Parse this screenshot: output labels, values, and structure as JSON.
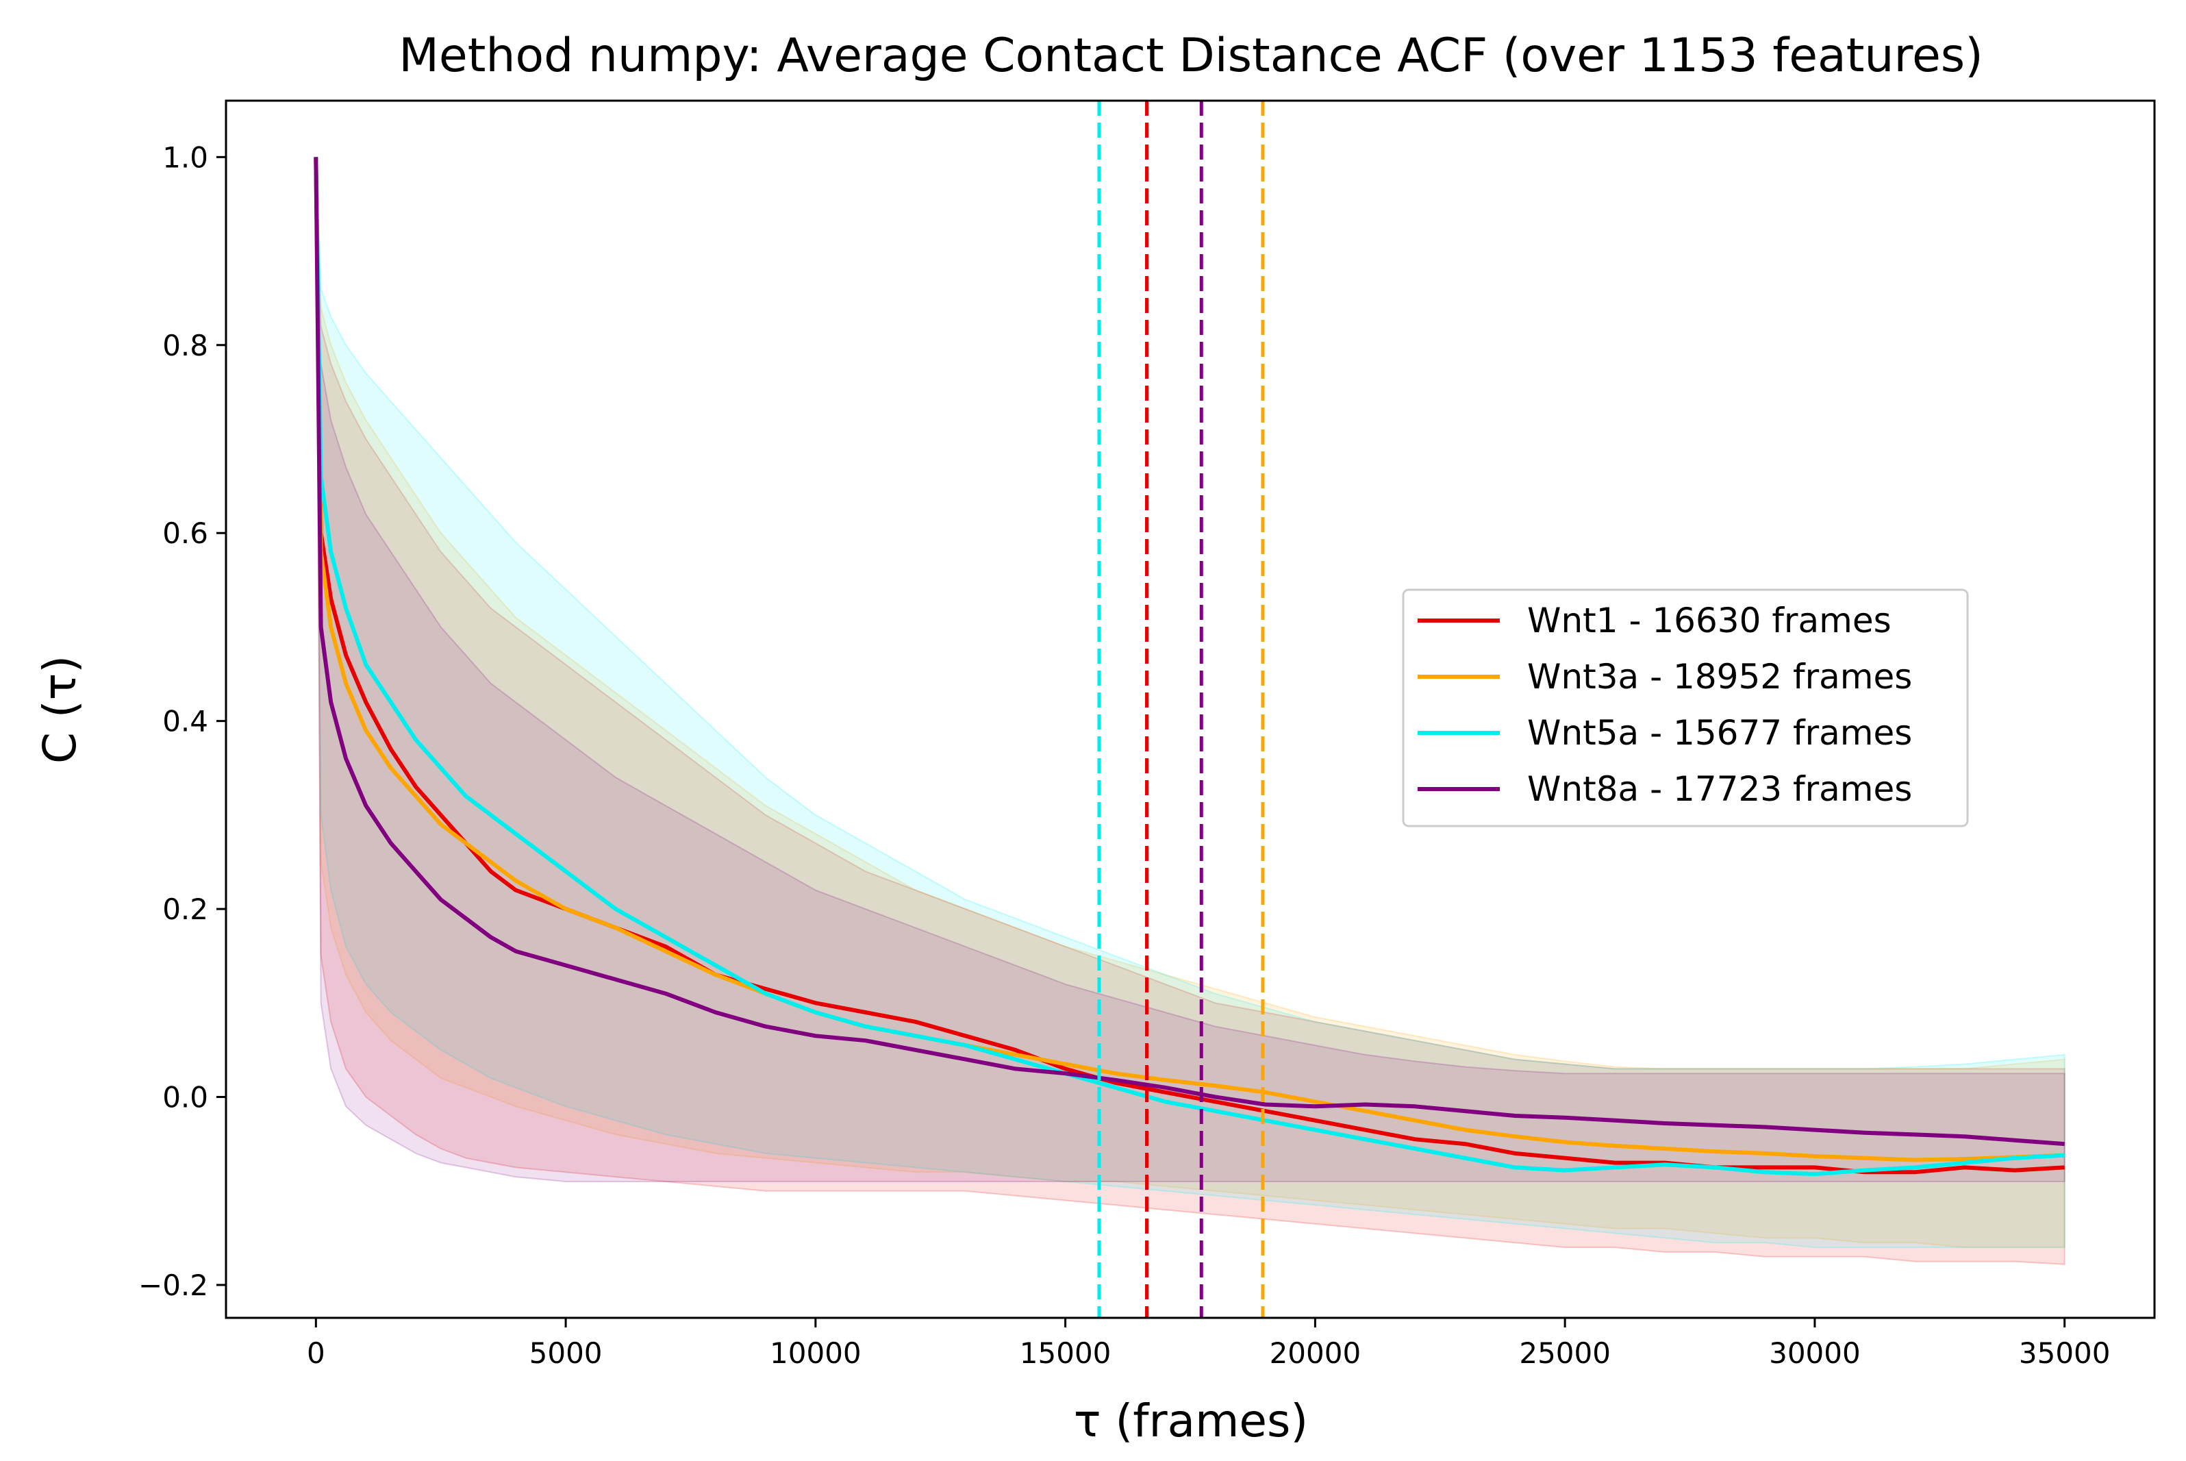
{
  "chart_data": {
    "type": "line",
    "title": "Method numpy: Average Contact Distance ACF (over 1153 features)",
    "xlabel": "τ (frames)",
    "ylabel": "C (τ)",
    "xlim": [
      -1800,
      36800
    ],
    "ylim": [
      -0.235,
      1.06
    ],
    "xticks": [
      0,
      5000,
      10000,
      15000,
      20000,
      25000,
      30000,
      35000
    ],
    "xtick_labels": [
      "0",
      "5000",
      "10000",
      "15000",
      "20000",
      "25000",
      "30000",
      "35000"
    ],
    "yticks": [
      -0.2,
      0.0,
      0.2,
      0.4,
      0.6,
      0.8,
      1.0
    ],
    "ytick_labels": [
      "−0.2",
      "0.0",
      "0.2",
      "0.4",
      "0.6",
      "0.8",
      "1.0"
    ],
    "grid": false,
    "legend_position": "center-right",
    "series": [
      {
        "name": "Wnt1 - 16630 frames",
        "color": "#e60000",
        "decorrelation_time": 16630,
        "x": [
          0,
          100,
          300,
          600,
          1000,
          1500,
          2000,
          2500,
          3000,
          3500,
          4000,
          5000,
          6000,
          7000,
          8000,
          9000,
          10000,
          11000,
          12000,
          13000,
          14000,
          15000,
          16000,
          17000,
          18000,
          19000,
          20000,
          21000,
          22000,
          23000,
          24000,
          25000,
          26000,
          27000,
          28000,
          29000,
          30000,
          31000,
          32000,
          33000,
          34000,
          35000
        ],
        "y": [
          1.0,
          0.6,
          0.53,
          0.47,
          0.42,
          0.37,
          0.33,
          0.3,
          0.27,
          0.24,
          0.22,
          0.2,
          0.18,
          0.16,
          0.13,
          0.115,
          0.1,
          0.09,
          0.08,
          0.065,
          0.05,
          0.03,
          0.015,
          0.005,
          -0.005,
          -0.015,
          -0.025,
          -0.035,
          -0.045,
          -0.05,
          -0.06,
          -0.065,
          -0.07,
          -0.07,
          -0.075,
          -0.075,
          -0.075,
          -0.08,
          -0.08,
          -0.075,
          -0.078,
          -0.075
        ],
        "upper": [
          1.0,
          0.82,
          0.78,
          0.74,
          0.7,
          0.66,
          0.62,
          0.58,
          0.55,
          0.52,
          0.5,
          0.46,
          0.42,
          0.38,
          0.34,
          0.3,
          0.27,
          0.24,
          0.22,
          0.2,
          0.18,
          0.16,
          0.14,
          0.12,
          0.1,
          0.09,
          0.08,
          0.07,
          0.06,
          0.05,
          0.04,
          0.035,
          0.03,
          0.03,
          0.03,
          0.03,
          0.03,
          0.03,
          0.03,
          0.03,
          0.03,
          0.03
        ],
        "lower": [
          1.0,
          0.15,
          0.08,
          0.03,
          0.0,
          -0.02,
          -0.04,
          -0.055,
          -0.065,
          -0.07,
          -0.075,
          -0.08,
          -0.085,
          -0.09,
          -0.095,
          -0.1,
          -0.1,
          -0.1,
          -0.1,
          -0.1,
          -0.105,
          -0.11,
          -0.115,
          -0.12,
          -0.125,
          -0.13,
          -0.135,
          -0.14,
          -0.145,
          -0.15,
          -0.155,
          -0.16,
          -0.16,
          -0.165,
          -0.165,
          -0.17,
          -0.17,
          -0.17,
          -0.175,
          -0.175,
          -0.175,
          -0.178
        ]
      },
      {
        "name": "Wnt3a - 18952 frames",
        "color": "#ffa500",
        "decorrelation_time": 18952,
        "x": [
          0,
          100,
          300,
          600,
          1000,
          1500,
          2000,
          2500,
          3000,
          3500,
          4000,
          5000,
          6000,
          7000,
          8000,
          9000,
          10000,
          11000,
          12000,
          13000,
          14000,
          15000,
          16000,
          17000,
          18000,
          19000,
          20000,
          21000,
          22000,
          23000,
          24000,
          25000,
          26000,
          27000,
          28000,
          29000,
          30000,
          31000,
          32000,
          33000,
          34000,
          35000
        ],
        "y": [
          1.0,
          0.58,
          0.5,
          0.44,
          0.39,
          0.35,
          0.32,
          0.29,
          0.27,
          0.25,
          0.23,
          0.2,
          0.18,
          0.155,
          0.13,
          0.11,
          0.09,
          0.075,
          0.065,
          0.055,
          0.045,
          0.035,
          0.025,
          0.018,
          0.012,
          0.005,
          -0.005,
          -0.015,
          -0.025,
          -0.035,
          -0.042,
          -0.048,
          -0.052,
          -0.055,
          -0.058,
          -0.06,
          -0.063,
          -0.065,
          -0.067,
          -0.066,
          -0.064,
          -0.062
        ],
        "upper": [
          1.0,
          0.84,
          0.8,
          0.76,
          0.72,
          0.68,
          0.64,
          0.6,
          0.57,
          0.54,
          0.51,
          0.47,
          0.43,
          0.39,
          0.35,
          0.31,
          0.28,
          0.25,
          0.22,
          0.2,
          0.18,
          0.16,
          0.145,
          0.13,
          0.115,
          0.1,
          0.085,
          0.075,
          0.065,
          0.055,
          0.045,
          0.038,
          0.032,
          0.03,
          0.03,
          0.03,
          0.03,
          0.03,
          0.03,
          0.03,
          0.035,
          0.04
        ],
        "lower": [
          1.0,
          0.25,
          0.18,
          0.13,
          0.09,
          0.06,
          0.04,
          0.02,
          0.01,
          0.0,
          -0.01,
          -0.025,
          -0.04,
          -0.05,
          -0.06,
          -0.065,
          -0.07,
          -0.075,
          -0.08,
          -0.08,
          -0.085,
          -0.09,
          -0.09,
          -0.095,
          -0.1,
          -0.105,
          -0.11,
          -0.115,
          -0.12,
          -0.125,
          -0.13,
          -0.135,
          -0.14,
          -0.14,
          -0.145,
          -0.15,
          -0.15,
          -0.155,
          -0.155,
          -0.16,
          -0.16,
          -0.16
        ]
      },
      {
        "name": "Wnt5a - 15677 frames",
        "color": "#00eeee",
        "decorrelation_time": 15677,
        "x": [
          0,
          100,
          300,
          600,
          1000,
          1500,
          2000,
          2500,
          3000,
          3500,
          4000,
          5000,
          6000,
          7000,
          8000,
          9000,
          10000,
          11000,
          12000,
          13000,
          14000,
          15000,
          16000,
          17000,
          18000,
          19000,
          20000,
          21000,
          22000,
          23000,
          24000,
          25000,
          26000,
          27000,
          28000,
          29000,
          30000,
          31000,
          32000,
          33000,
          34000,
          35000
        ],
        "y": [
          1.0,
          0.66,
          0.58,
          0.52,
          0.46,
          0.42,
          0.38,
          0.35,
          0.32,
          0.3,
          0.28,
          0.24,
          0.2,
          0.17,
          0.14,
          0.11,
          0.09,
          0.075,
          0.065,
          0.055,
          0.04,
          0.025,
          0.01,
          -0.005,
          -0.015,
          -0.025,
          -0.035,
          -0.045,
          -0.055,
          -0.065,
          -0.075,
          -0.078,
          -0.075,
          -0.072,
          -0.075,
          -0.08,
          -0.082,
          -0.078,
          -0.075,
          -0.07,
          -0.065,
          -0.062
        ],
        "upper": [
          1.0,
          0.86,
          0.83,
          0.8,
          0.77,
          0.74,
          0.71,
          0.68,
          0.65,
          0.62,
          0.59,
          0.54,
          0.49,
          0.44,
          0.39,
          0.34,
          0.3,
          0.27,
          0.24,
          0.21,
          0.19,
          0.17,
          0.15,
          0.13,
          0.11,
          0.095,
          0.08,
          0.07,
          0.06,
          0.05,
          0.04,
          0.035,
          0.03,
          0.03,
          0.03,
          0.03,
          0.03,
          0.03,
          0.032,
          0.035,
          0.04,
          0.045
        ],
        "lower": [
          1.0,
          0.3,
          0.22,
          0.16,
          0.12,
          0.09,
          0.07,
          0.05,
          0.035,
          0.02,
          0.01,
          -0.01,
          -0.025,
          -0.04,
          -0.05,
          -0.06,
          -0.065,
          -0.07,
          -0.075,
          -0.08,
          -0.085,
          -0.09,
          -0.095,
          -0.1,
          -0.105,
          -0.11,
          -0.115,
          -0.12,
          -0.125,
          -0.13,
          -0.135,
          -0.14,
          -0.145,
          -0.15,
          -0.155,
          -0.155,
          -0.16,
          -0.16,
          -0.16,
          -0.16,
          -0.16,
          -0.16
        ]
      },
      {
        "name": "Wnt8a - 17723 frames",
        "color": "#800080",
        "decorrelation_time": 17723,
        "x": [
          0,
          100,
          300,
          600,
          1000,
          1500,
          2000,
          2500,
          3000,
          3500,
          4000,
          5000,
          6000,
          7000,
          8000,
          9000,
          10000,
          11000,
          12000,
          13000,
          14000,
          15000,
          16000,
          17000,
          18000,
          19000,
          20000,
          21000,
          22000,
          23000,
          24000,
          25000,
          26000,
          27000,
          28000,
          29000,
          30000,
          31000,
          32000,
          33000,
          34000,
          35000
        ],
        "y": [
          1.0,
          0.5,
          0.42,
          0.36,
          0.31,
          0.27,
          0.24,
          0.21,
          0.19,
          0.17,
          0.155,
          0.14,
          0.125,
          0.11,
          0.09,
          0.075,
          0.065,
          0.06,
          0.05,
          0.04,
          0.03,
          0.025,
          0.018,
          0.01,
          0.0,
          -0.008,
          -0.01,
          -0.008,
          -0.01,
          -0.015,
          -0.02,
          -0.022,
          -0.025,
          -0.028,
          -0.03,
          -0.032,
          -0.035,
          -0.038,
          -0.04,
          -0.042,
          -0.046,
          -0.05
        ],
        "upper": [
          1.0,
          0.78,
          0.72,
          0.67,
          0.62,
          0.58,
          0.54,
          0.5,
          0.47,
          0.44,
          0.42,
          0.38,
          0.34,
          0.31,
          0.28,
          0.25,
          0.22,
          0.2,
          0.18,
          0.16,
          0.14,
          0.12,
          0.105,
          0.09,
          0.075,
          0.065,
          0.055,
          0.045,
          0.038,
          0.032,
          0.028,
          0.025,
          0.025,
          0.025,
          0.025,
          0.025,
          0.025,
          0.025,
          0.025,
          0.025,
          0.025,
          0.025
        ],
        "lower": [
          1.0,
          0.1,
          0.03,
          -0.01,
          -0.03,
          -0.045,
          -0.06,
          -0.07,
          -0.075,
          -0.08,
          -0.085,
          -0.09,
          -0.09,
          -0.09,
          -0.09,
          -0.09,
          -0.09,
          -0.09,
          -0.09,
          -0.09,
          -0.09,
          -0.09,
          -0.09,
          -0.09,
          -0.09,
          -0.09,
          -0.09,
          -0.09,
          -0.09,
          -0.09,
          -0.09,
          -0.09,
          -0.09,
          -0.09,
          -0.09,
          -0.09,
          -0.09,
          -0.09,
          -0.09,
          -0.09,
          -0.09,
          -0.09
        ]
      }
    ]
  }
}
